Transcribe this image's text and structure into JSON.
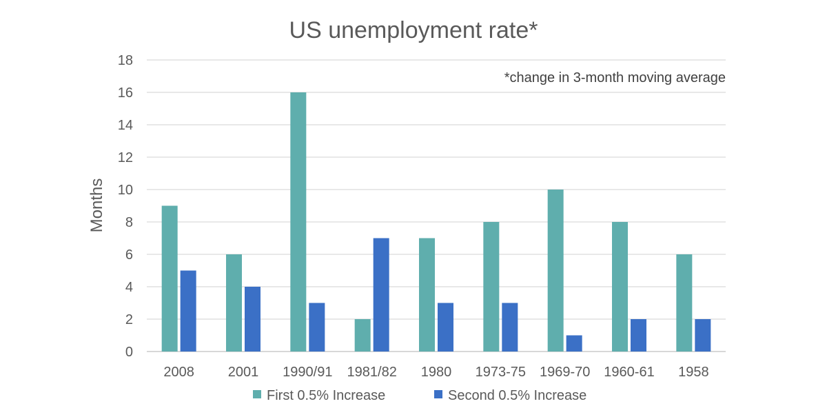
{
  "chart_data": {
    "type": "bar",
    "title": "US unemployment rate*",
    "annotation": "*change in 3-month moving average",
    "xlabel": "",
    "ylabel": "Months",
    "ylim": [
      0,
      18
    ],
    "yticks": [
      0,
      2,
      4,
      6,
      8,
      10,
      12,
      14,
      16,
      18
    ],
    "grid": true,
    "legend_position": "bottom",
    "categories": [
      "2008",
      "2001",
      "1990/91",
      "1981/82",
      "1980",
      "1973-75",
      "1969-70",
      "1960-61",
      "1958"
    ],
    "series": [
      {
        "name": "First 0.5% Increase",
        "color": "#5faead",
        "values": [
          9,
          6,
          16,
          2,
          7,
          8,
          10,
          8,
          6
        ]
      },
      {
        "name": "Second 0.5% Increase",
        "color": "#3b70c6",
        "values": [
          5,
          4,
          3,
          7,
          3,
          3,
          1,
          2,
          2
        ]
      }
    ]
  }
}
